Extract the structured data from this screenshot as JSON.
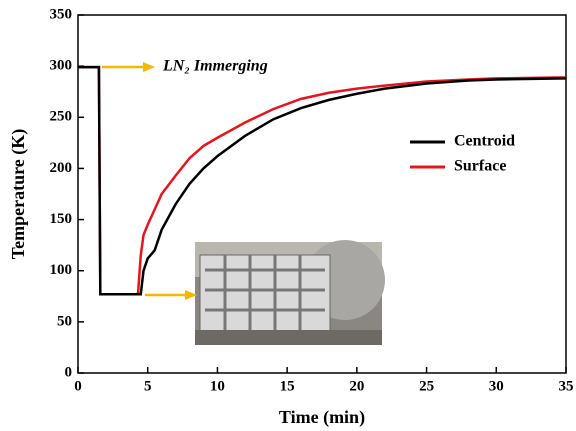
{
  "chart_data": {
    "type": "line",
    "xlabel": "Time (min)",
    "ylabel": "Temperature (K)",
    "annotation": "LN₂ Immerging",
    "x": [
      0,
      1.5,
      1.6,
      4.3,
      4.5,
      4.7,
      5,
      5.5,
      6,
      7,
      8,
      9,
      10,
      12,
      14,
      16,
      18,
      20,
      22,
      25,
      28,
      30,
      35
    ],
    "series": [
      {
        "name": "Centroid",
        "color": "#000000",
        "values": [
          299,
          299,
          77,
          77,
          77,
          100,
          112,
          120,
          140,
          165,
          185,
          200,
          212,
          232,
          248,
          259,
          267,
          273,
          278,
          283,
          286,
          287,
          288
        ]
      },
      {
        "name": "Surface",
        "color": "#e8141b",
        "values": [
          299,
          299,
          77,
          77,
          115,
          135,
          145,
          160,
          175,
          193,
          210,
          222,
          230,
          245,
          258,
          268,
          274,
          278,
          281,
          285,
          287,
          288,
          289
        ]
      }
    ],
    "xlim": [
      0,
      35
    ],
    "xticks": [
      0,
      5,
      10,
      15,
      20,
      25,
      30,
      35
    ],
    "ylim": [
      0,
      350
    ],
    "yticks": [
      0,
      50,
      100,
      150,
      200,
      250,
      300,
      350
    ],
    "legend": "right",
    "grid": false
  }
}
